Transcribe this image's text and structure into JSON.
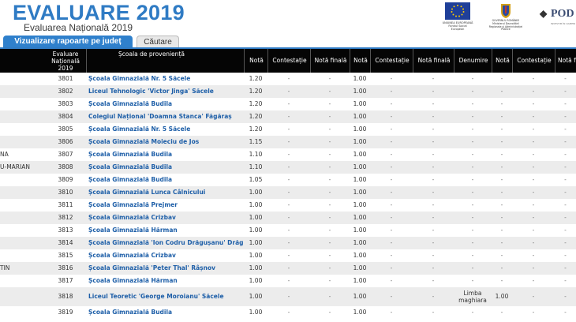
{
  "header": {
    "title": "EVALUARE 2019",
    "subtitle": "Evaluarea Națională 2019"
  },
  "logos": {
    "eu_caption": "UNIUNEA EUROPEANĂ Fondul Social European",
    "gov_caption": "GUVERNUL ROMÂNIEI Ministerul Dezvoltării Regionale și Administrației Publice",
    "pod_text": "POD",
    "pod_small": "INVESTIM ÎN OAMENI"
  },
  "tabs": [
    {
      "label": "Vizualizare rapoarte pe județ"
    },
    {
      "label": "Căutare"
    }
  ],
  "columns": {
    "evaluare": "Evaluare Națională 2019",
    "scoala": "Școala de proveniență",
    "nota1": "Notă",
    "contestatie1": "Contestație",
    "nota_finala1": "Notă finală",
    "nota2": "Notă",
    "contestatie2": "Contestație",
    "nota_finala2": "Notă finală",
    "denumire": "Denumire",
    "nota3": "Notă",
    "contestatie3": "Contestație",
    "nota4": "Notă f"
  },
  "rows": [
    {
      "name": "",
      "code": "3801",
      "school": "Școala Gimnazială Nr. 5 Săcele",
      "n1": "1.20",
      "c1": "-",
      "f1": "-",
      "n2": "1.00",
      "c2": "-",
      "f2": "-",
      "den": "-",
      "n3": "-",
      "c3": "-",
      "n4": "-"
    },
    {
      "name": "",
      "code": "3802",
      "school": "Liceul Tehnologic 'Victor Jinga' Săcele",
      "n1": "1.20",
      "c1": "-",
      "f1": "-",
      "n2": "1.00",
      "c2": "-",
      "f2": "-",
      "den": "-",
      "n3": "-",
      "c3": "-",
      "n4": "-"
    },
    {
      "name": "",
      "code": "3803",
      "school": "Școala Gimnazială Budila",
      "n1": "1.20",
      "c1": "-",
      "f1": "-",
      "n2": "1.00",
      "c2": "-",
      "f2": "-",
      "den": "-",
      "n3": "-",
      "c3": "-",
      "n4": "-"
    },
    {
      "name": "",
      "code": "3804",
      "school": "Colegiul Național 'Doamna Stanca' Făgăraș",
      "n1": "1.20",
      "c1": "-",
      "f1": "-",
      "n2": "1.00",
      "c2": "-",
      "f2": "-",
      "den": "-",
      "n3": "-",
      "c3": "-",
      "n4": "-"
    },
    {
      "name": "",
      "code": "3805",
      "school": "Școala Gimnazială Nr. 5 Săcele",
      "n1": "1.20",
      "c1": "-",
      "f1": "-",
      "n2": "1.00",
      "c2": "-",
      "f2": "-",
      "den": "-",
      "n3": "-",
      "c3": "-",
      "n4": "-"
    },
    {
      "name": "",
      "code": "3806",
      "school": "Școala Gimnazială Moieciu de Jos",
      "n1": "1.15",
      "c1": "-",
      "f1": "-",
      "n2": "1.00",
      "c2": "-",
      "f2": "-",
      "den": "-",
      "n3": "-",
      "c3": "-",
      "n4": "-"
    },
    {
      "name": "NA",
      "code": "3807",
      "school": "Școala Gimnazială Budila",
      "n1": "1.10",
      "c1": "-",
      "f1": "-",
      "n2": "1.00",
      "c2": "-",
      "f2": "-",
      "den": "-",
      "n3": "-",
      "c3": "-",
      "n4": "-"
    },
    {
      "name": "U-MARIAN",
      "code": "3808",
      "school": "Școala Gimnazială Budila",
      "n1": "1.10",
      "c1": "-",
      "f1": "-",
      "n2": "1.00",
      "c2": "-",
      "f2": "-",
      "den": "-",
      "n3": "-",
      "c3": "-",
      "n4": "-"
    },
    {
      "name": "",
      "code": "3809",
      "school": "Școala Gimnazială Budila",
      "n1": "1.05",
      "c1": "-",
      "f1": "-",
      "n2": "1.00",
      "c2": "-",
      "f2": "-",
      "den": "-",
      "n3": "-",
      "c3": "-",
      "n4": "-"
    },
    {
      "name": "",
      "code": "3810",
      "school": "Școala Gimnazială Lunca Câlnicului",
      "n1": "1.00",
      "c1": "-",
      "f1": "-",
      "n2": "1.00",
      "c2": "-",
      "f2": "-",
      "den": "-",
      "n3": "-",
      "c3": "-",
      "n4": "-"
    },
    {
      "name": "",
      "code": "3811",
      "school": "Școala Gimnazială Prejmer",
      "n1": "1.00",
      "c1": "-",
      "f1": "-",
      "n2": "1.00",
      "c2": "-",
      "f2": "-",
      "den": "-",
      "n3": "-",
      "c3": "-",
      "n4": "-"
    },
    {
      "name": "",
      "code": "3812",
      "school": "Școala Gimnazială Crizbav",
      "n1": "1.00",
      "c1": "-",
      "f1": "-",
      "n2": "1.00",
      "c2": "-",
      "f2": "-",
      "den": "-",
      "n3": "-",
      "c3": "-",
      "n4": "-"
    },
    {
      "name": "",
      "code": "3813",
      "school": "Școala Gimnazială Hărman",
      "n1": "1.00",
      "c1": "-",
      "f1": "-",
      "n2": "1.00",
      "c2": "-",
      "f2": "-",
      "den": "-",
      "n3": "-",
      "c3": "-",
      "n4": "-"
    },
    {
      "name": "",
      "code": "3814",
      "school": "Școala Gimnazială 'Ion Codru Drăgușanu' Drăguș",
      "n1": "1.00",
      "c1": "-",
      "f1": "-",
      "n2": "1.00",
      "c2": "-",
      "f2": "-",
      "den": "-",
      "n3": "-",
      "c3": "-",
      "n4": "-"
    },
    {
      "name": "",
      "code": "3815",
      "school": "Școala Gimnazială Crizbav",
      "n1": "1.00",
      "c1": "-",
      "f1": "-",
      "n2": "1.00",
      "c2": "-",
      "f2": "-",
      "den": "-",
      "n3": "-",
      "c3": "-",
      "n4": "-"
    },
    {
      "name": "TIN",
      "code": "3816",
      "school": "Școala Gimnazială 'Peter Thal' Râșnov",
      "n1": "1.00",
      "c1": "-",
      "f1": "-",
      "n2": "1.00",
      "c2": "-",
      "f2": "-",
      "den": "-",
      "n3": "-",
      "c3": "-",
      "n4": "-"
    },
    {
      "name": "",
      "code": "3817",
      "school": "Școala Gimnazială Hărman",
      "n1": "1.00",
      "c1": "-",
      "f1": "-",
      "n2": "1.00",
      "c2": "-",
      "f2": "-",
      "den": "-",
      "n3": "-",
      "c3": "-",
      "n4": "-"
    },
    {
      "name": "",
      "code": "3818",
      "school": "Liceul Teoretic 'George Moroianu' Săcele",
      "n1": "1.00",
      "c1": "-",
      "f1": "-",
      "n2": "1.00",
      "c2": "-",
      "f2": "-",
      "den": "Limba maghiara",
      "n3": "1.00",
      "c3": "-",
      "n4": "-"
    },
    {
      "name": "",
      "code": "3819",
      "school": "Școala Gimnazială Budila",
      "n1": "1.00",
      "c1": "-",
      "f1": "-",
      "n2": "1.00",
      "c2": "-",
      "f2": "-",
      "den": "-",
      "n3": "-",
      "c3": "-",
      "n4": "-"
    }
  ]
}
